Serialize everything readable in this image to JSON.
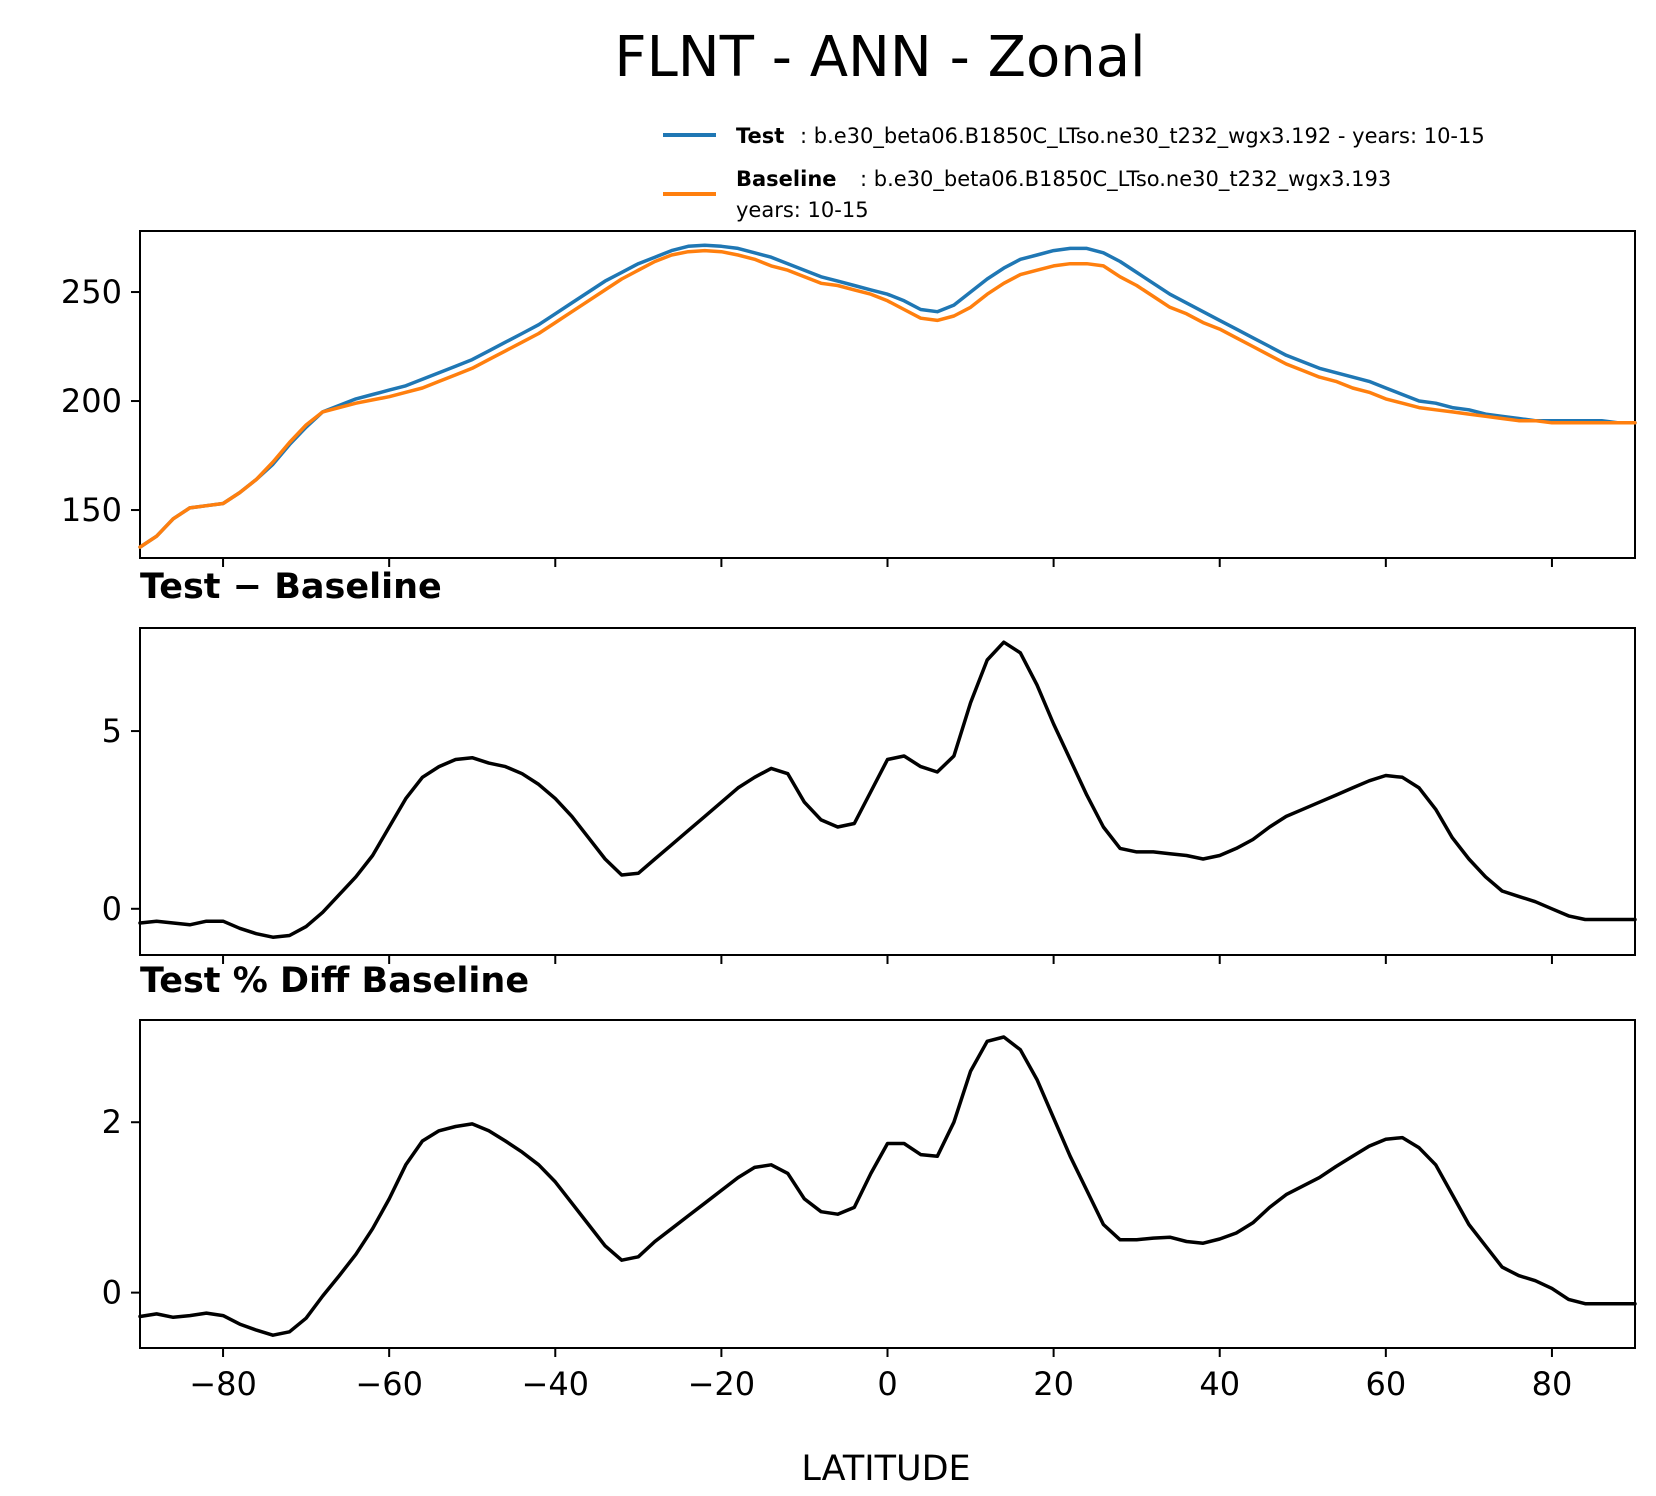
{
  "figure_title": "FLNT - ANN - Zonal",
  "legend": [
    {
      "key": "Test",
      "text": ": b.e30_beta06.B1850C_LTso.ne30_t232_wgx3.192 - years: 10-15",
      "text2": "",
      "color": "#1f77b4"
    },
    {
      "key": "Baseline",
      "text": ": b.e30_beta06.B1850C_LTso.ne30_t232_wgx3.193",
      "text2": "years: 10-15",
      "color": "#ff7f0e"
    }
  ],
  "xlabel": "LATITUDE",
  "chart_data": [
    {
      "type": "line",
      "title": "",
      "xlim": [
        -90,
        90
      ],
      "ylim": [
        128,
        278
      ],
      "xticks": [
        -80,
        -60,
        -40,
        -20,
        0,
        20,
        40,
        60,
        80
      ],
      "yticks": [
        150,
        200,
        250
      ],
      "x": [
        -90,
        -88,
        -86,
        -84,
        -82,
        -80,
        -78,
        -76,
        -74,
        -72,
        -70,
        -68,
        -66,
        -64,
        -62,
        -60,
        -58,
        -56,
        -54,
        -52,
        -50,
        -48,
        -46,
        -44,
        -42,
        -40,
        -38,
        -36,
        -34,
        -32,
        -30,
        -28,
        -26,
        -24,
        -22,
        -20,
        -18,
        -16,
        -14,
        -12,
        -10,
        -8,
        -6,
        -4,
        -2,
        0,
        2,
        4,
        6,
        8,
        10,
        12,
        14,
        16,
        18,
        20,
        22,
        24,
        26,
        28,
        30,
        32,
        34,
        36,
        38,
        40,
        42,
        44,
        46,
        48,
        50,
        52,
        54,
        56,
        58,
        60,
        62,
        64,
        66,
        68,
        70,
        72,
        74,
        76,
        78,
        80,
        82,
        84,
        86,
        88,
        90
      ],
      "series": [
        {
          "name": "Test",
          "color": "#1f77b4",
          "values": [
            133,
            138,
            146,
            151,
            152,
            153,
            158,
            164,
            171,
            180,
            188,
            195,
            198,
            201,
            203,
            205,
            207,
            210,
            213,
            216,
            219,
            223,
            227,
            231,
            235,
            240,
            245,
            250,
            255,
            259,
            263,
            266,
            269,
            271,
            271.5,
            271,
            270,
            268,
            266,
            263,
            260,
            257,
            255,
            253,
            251,
            249,
            246,
            242,
            241,
            244,
            250,
            256,
            261,
            265,
            267,
            269,
            270,
            270,
            268,
            264,
            259,
            254,
            249,
            245,
            241,
            237,
            233,
            229,
            225,
            221,
            218,
            215,
            213,
            211,
            209,
            206,
            203,
            200,
            199,
            197,
            196,
            194,
            193,
            192,
            191,
            191,
            191,
            191,
            191,
            190,
            190
          ]
        },
        {
          "name": "Baseline",
          "color": "#ff7f0e",
          "values": [
            133,
            138,
            146,
            151,
            152,
            153,
            158,
            164,
            172,
            181,
            189,
            195,
            197,
            199,
            200.5,
            202,
            204,
            206,
            209,
            212,
            215,
            219,
            223,
            227,
            231,
            236,
            241,
            246,
            251,
            256,
            260,
            264,
            267,
            268.5,
            269,
            268.5,
            267,
            265,
            262,
            260,
            257,
            254,
            253,
            251,
            249,
            246,
            242,
            238,
            237,
            239,
            243,
            249,
            254,
            258,
            260,
            262,
            263,
            263,
            262,
            257,
            253,
            248,
            243,
            240,
            236,
            233,
            229,
            225,
            221,
            217,
            214,
            211,
            209,
            206,
            204,
            201,
            199,
            197,
            196,
            195,
            194,
            193,
            192,
            191,
            191,
            190,
            190,
            190,
            190,
            190,
            190
          ]
        }
      ]
    },
    {
      "type": "line",
      "title": "Test − Baseline",
      "xlim": [
        -90,
        90
      ],
      "ylim": [
        -1.3,
        7.9
      ],
      "xticks": [
        -80,
        -60,
        -40,
        -20,
        0,
        20,
        40,
        60,
        80
      ],
      "yticks": [
        0,
        5
      ],
      "x": [
        -90,
        -88,
        -86,
        -84,
        -82,
        -80,
        -78,
        -76,
        -74,
        -72,
        -70,
        -68,
        -66,
        -64,
        -62,
        -60,
        -58,
        -56,
        -54,
        -52,
        -50,
        -48,
        -46,
        -44,
        -42,
        -40,
        -38,
        -36,
        -34,
        -32,
        -30,
        -28,
        -26,
        -24,
        -22,
        -20,
        -18,
        -16,
        -14,
        -12,
        -10,
        -8,
        -6,
        -4,
        -2,
        0,
        2,
        4,
        6,
        8,
        10,
        12,
        14,
        16,
        18,
        20,
        22,
        24,
        26,
        28,
        30,
        32,
        34,
        36,
        38,
        40,
        42,
        44,
        46,
        48,
        50,
        52,
        54,
        56,
        58,
        60,
        62,
        64,
        66,
        68,
        70,
        72,
        74,
        76,
        78,
        80,
        82,
        84,
        86,
        88,
        90
      ],
      "series": [
        {
          "name": "",
          "color": "#000000",
          "values": [
            -0.4,
            -0.35,
            -0.4,
            -0.45,
            -0.35,
            -0.35,
            -0.55,
            -0.7,
            -0.8,
            -0.75,
            -0.5,
            -0.1,
            0.4,
            0.9,
            1.5,
            2.3,
            3.1,
            3.7,
            4.0,
            4.2,
            4.25,
            4.1,
            4.0,
            3.8,
            3.5,
            3.1,
            2.6,
            2.0,
            1.4,
            0.95,
            1.0,
            1.4,
            1.8,
            2.2,
            2.6,
            3.0,
            3.4,
            3.7,
            3.95,
            3.8,
            3.0,
            2.5,
            2.3,
            2.4,
            3.3,
            4.2,
            4.3,
            4.0,
            3.85,
            4.3,
            5.8,
            7.0,
            7.5,
            7.2,
            6.3,
            5.2,
            4.2,
            3.2,
            2.3,
            1.7,
            1.6,
            1.6,
            1.55,
            1.5,
            1.4,
            1.5,
            1.7,
            1.95,
            2.3,
            2.6,
            2.8,
            3.0,
            3.2,
            3.4,
            3.6,
            3.75,
            3.7,
            3.4,
            2.8,
            2.0,
            1.4,
            0.9,
            0.5,
            0.35,
            0.2,
            0.0,
            -0.2,
            -0.3,
            -0.3,
            -0.3,
            -0.3
          ]
        }
      ]
    },
    {
      "type": "line",
      "title": "Test % Diff Baseline",
      "xlim": [
        -90,
        90
      ],
      "ylim": [
        -0.65,
        3.2
      ],
      "xticks": [
        -80,
        -60,
        -40,
        -20,
        0,
        20,
        40,
        60,
        80
      ],
      "yticks": [
        0,
        2
      ],
      "xticklabels": [
        "−80",
        "−60",
        "−40",
        "−20",
        "0",
        "20",
        "40",
        "60",
        "80"
      ],
      "x": [
        -90,
        -88,
        -86,
        -84,
        -82,
        -80,
        -78,
        -76,
        -74,
        -72,
        -70,
        -68,
        -66,
        -64,
        -62,
        -60,
        -58,
        -56,
        -54,
        -52,
        -50,
        -48,
        -46,
        -44,
        -42,
        -40,
        -38,
        -36,
        -34,
        -32,
        -30,
        -28,
        -26,
        -24,
        -22,
        -20,
        -18,
        -16,
        -14,
        -12,
        -10,
        -8,
        -6,
        -4,
        -2,
        0,
        2,
        4,
        6,
        8,
        10,
        12,
        14,
        16,
        18,
        20,
        22,
        24,
        26,
        28,
        30,
        32,
        34,
        36,
        38,
        40,
        42,
        44,
        46,
        48,
        50,
        52,
        54,
        56,
        58,
        60,
        62,
        64,
        66,
        68,
        70,
        72,
        74,
        76,
        78,
        80,
        82,
        84,
        86,
        88,
        90
      ],
      "series": [
        {
          "name": "",
          "color": "#000000",
          "values": [
            -0.28,
            -0.25,
            -0.29,
            -0.27,
            -0.24,
            -0.27,
            -0.37,
            -0.44,
            -0.5,
            -0.46,
            -0.3,
            -0.04,
            0.2,
            0.45,
            0.75,
            1.1,
            1.5,
            1.78,
            1.9,
            1.95,
            1.98,
            1.9,
            1.78,
            1.65,
            1.5,
            1.3,
            1.05,
            0.8,
            0.55,
            0.38,
            0.42,
            0.6,
            0.75,
            0.9,
            1.05,
            1.2,
            1.35,
            1.47,
            1.5,
            1.4,
            1.1,
            0.95,
            0.92,
            1.0,
            1.4,
            1.75,
            1.75,
            1.62,
            1.6,
            2.0,
            2.6,
            2.95,
            3.0,
            2.85,
            2.5,
            2.05,
            1.6,
            1.2,
            0.8,
            0.62,
            0.62,
            0.64,
            0.65,
            0.6,
            0.58,
            0.63,
            0.7,
            0.82,
            1.0,
            1.15,
            1.25,
            1.35,
            1.48,
            1.6,
            1.72,
            1.8,
            1.82,
            1.7,
            1.5,
            1.15,
            0.8,
            0.55,
            0.3,
            0.2,
            0.14,
            0.05,
            -0.08,
            -0.13,
            -0.13,
            -0.13,
            -0.13
          ]
        }
      ]
    }
  ]
}
